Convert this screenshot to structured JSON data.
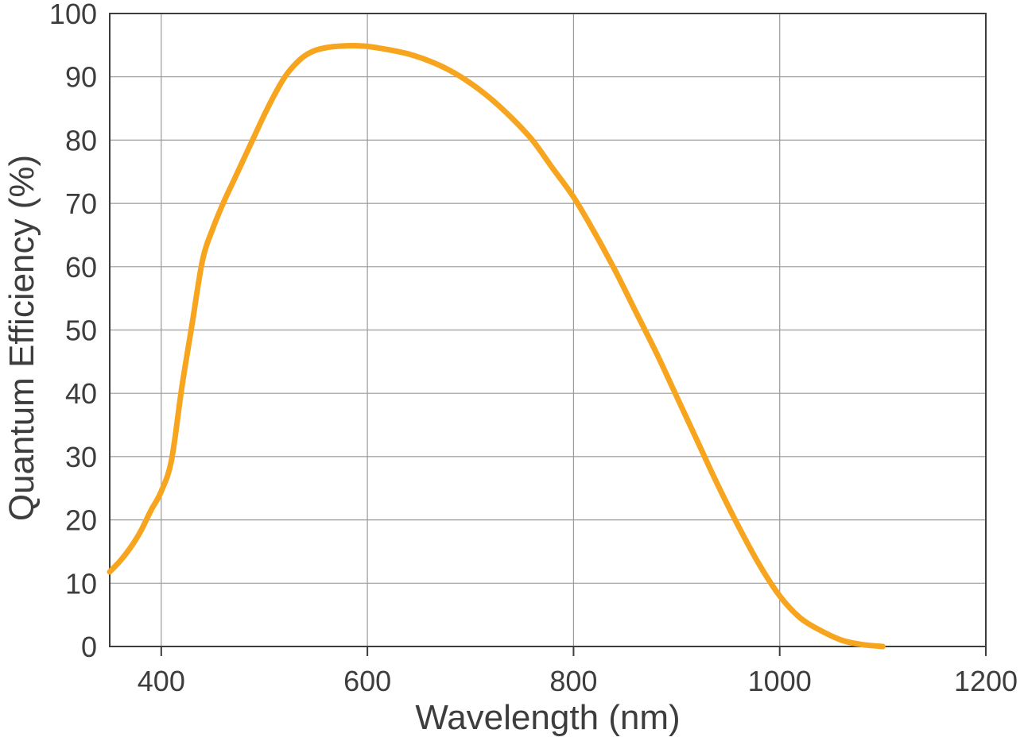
{
  "chart_data": {
    "type": "line",
    "title": "",
    "xlabel": "Wavelength (nm)",
    "ylabel": "Quantum Efficiency (%)",
    "xlim": [
      350,
      1200
    ],
    "ylim": [
      0,
      100
    ],
    "xticks": [
      400,
      600,
      800,
      1000,
      1200
    ],
    "yticks": [
      0,
      10,
      20,
      30,
      40,
      50,
      60,
      70,
      80,
      90,
      100
    ],
    "grid": true,
    "legend": "none",
    "line_color": "#F7A51E",
    "grid_color": "#9a9a9a",
    "axis_color": "#3d3d3d",
    "series": [
      {
        "x": [
          350,
          360,
          370,
          380,
          390,
          400,
          410,
          420,
          430,
          440,
          450,
          460,
          470,
          480,
          490,
          500,
          510,
          520,
          530,
          540,
          550,
          560,
          570,
          580,
          590,
          600,
          620,
          640,
          660,
          680,
          700,
          720,
          740,
          760,
          780,
          800,
          820,
          840,
          860,
          880,
          900,
          920,
          940,
          960,
          980,
          1000,
          1020,
          1040,
          1060,
          1080,
          1100
        ],
        "y": [
          11.8,
          13.5,
          15.6,
          18.2,
          21.5,
          24.5,
          29.5,
          41,
          51,
          61,
          66,
          70,
          73.5,
          77,
          80.5,
          84,
          87.2,
          90,
          92,
          93.4,
          94.2,
          94.6,
          94.8,
          94.9,
          94.9,
          94.8,
          94.3,
          93.6,
          92.5,
          91,
          89,
          86.5,
          83.5,
          80,
          75.5,
          71,
          65.5,
          59.5,
          53,
          46.5,
          39.5,
          32.5,
          25.5,
          19,
          13,
          8,
          4.5,
          2.5,
          1,
          0.3,
          0
        ]
      }
    ]
  }
}
